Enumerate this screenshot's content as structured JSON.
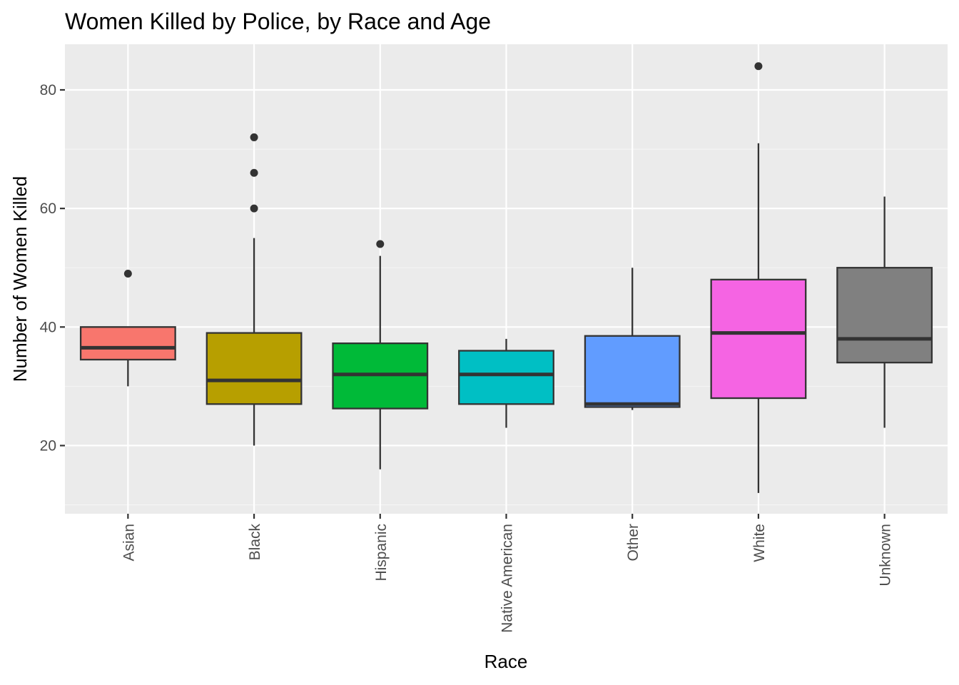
{
  "chart_data": {
    "type": "boxplot",
    "title": "Women Killed by Police, by Race and Age",
    "xlabel": "Race",
    "ylabel": "Number of Women Killed",
    "ylim": [
      8.5,
      87.7
    ],
    "yticks": [
      20,
      40,
      60,
      80
    ],
    "grid": true,
    "legend": "none",
    "categories": [
      "Asian",
      "Black",
      "Hispanic",
      "Native American",
      "Other",
      "White",
      "Unknown"
    ],
    "series": [
      {
        "category": "Asian",
        "color": "#F8766D",
        "whisker_low": 30,
        "q1": 34.5,
        "median": 36.5,
        "q3": 40,
        "whisker_high": 40,
        "outliers": [
          49
        ]
      },
      {
        "category": "Black",
        "color": "#B79F00",
        "whisker_low": 20,
        "q1": 27,
        "median": 31,
        "q3": 39,
        "whisker_high": 55,
        "outliers": [
          60,
          66,
          72
        ]
      },
      {
        "category": "Hispanic",
        "color": "#00BA38",
        "whisker_low": 16,
        "q1": 26.25,
        "median": 32,
        "q3": 37.25,
        "whisker_high": 52,
        "outliers": [
          54
        ]
      },
      {
        "category": "Native American",
        "color": "#00BFC4",
        "whisker_low": 23,
        "q1": 27,
        "median": 32,
        "q3": 36,
        "whisker_high": 38,
        "outliers": []
      },
      {
        "category": "Other",
        "color": "#619CFF",
        "whisker_low": 26,
        "q1": 26.5,
        "median": 27,
        "q3": 38.5,
        "whisker_high": 50,
        "outliers": []
      },
      {
        "category": "White",
        "color": "#F564E3",
        "whisker_low": 12,
        "q1": 28,
        "median": 39,
        "q3": 48,
        "whisker_high": 71,
        "outliers": [
          84
        ]
      },
      {
        "category": "Unknown",
        "color": "#808080",
        "whisker_low": 23,
        "q1": 34,
        "median": 38,
        "q3": 50,
        "whisker_high": 62,
        "outliers": []
      }
    ],
    "colors": {
      "panel_background": "#EBEBEB",
      "grid_major": "#FFFFFF",
      "grid_minor": "#F5F5F5",
      "box_line": "#333333",
      "tick_label": "#4D4D4D"
    }
  }
}
